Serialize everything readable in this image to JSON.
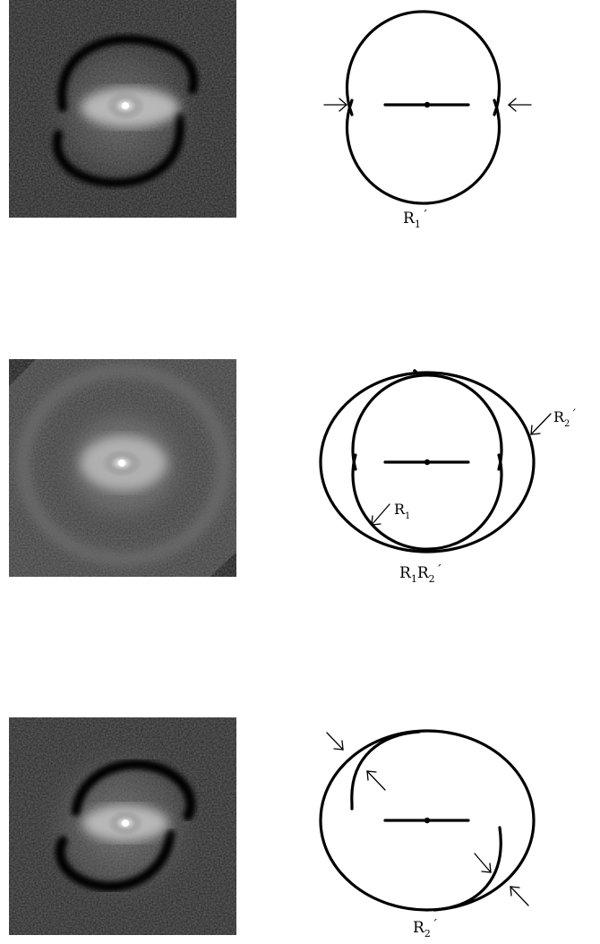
{
  "panels": [
    {
      "caption": {
        "base": "R",
        "sub": "1",
        "prime": "´",
        "base2": "",
        "sub2": ""
      }
    },
    {
      "caption": {
        "base": "R",
        "sub": "1",
        "prime": "",
        "base2": "R",
        "sub2": "2",
        "prime2": "´"
      },
      "labels": [
        {
          "base": "R",
          "sub": "2",
          "prime": "´"
        },
        {
          "base": "R",
          "sub": "1",
          "prime": ""
        }
      ]
    },
    {
      "caption": {
        "base": "R",
        "sub": "2",
        "prime": "´",
        "base2": "",
        "sub2": ""
      }
    }
  ],
  "colors": {
    "ink": "#000000",
    "sky": "#1a1a1a",
    "glow": "#ffffff"
  }
}
